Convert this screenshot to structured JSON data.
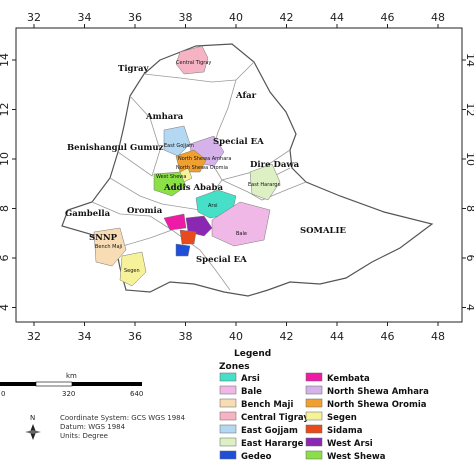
{
  "map": {
    "x_ticks": [
      "32",
      "34",
      "36",
      "38",
      "40",
      "42",
      "44",
      "46",
      "48"
    ],
    "y_ticks": [
      "14",
      "12",
      "10",
      "8",
      "6",
      "4"
    ],
    "regions": [
      "Tigray",
      "Afar",
      "Amhara",
      "Benishangul Gumuz",
      "Special EA",
      "Dire Dawa",
      "Addis Ababa",
      "Gambella",
      "Oromia",
      "SNNP",
      "Special EA",
      "SOMALIE"
    ],
    "zone_labels": [
      "Central Tigray",
      "East Gojjam",
      "North Shewa Amhara",
      "North Shewa Oromia",
      "West Shewa",
      "East Hararge",
      "Arsi",
      "Bale",
      "Bench Maji",
      "Segen"
    ]
  },
  "legend": {
    "title": "Legend",
    "subtitle": "Zones",
    "items": [
      {
        "label": "Arsi",
        "color": "#46e0c8"
      },
      {
        "label": "Kembata",
        "color": "#ee1ba6"
      },
      {
        "label": "Bale",
        "color": "#f0b8e6"
      },
      {
        "label": "North Shewa Amhara",
        "color": "#d5b3ea"
      },
      {
        "label": "Bench Maji",
        "color": "#f8dcb4"
      },
      {
        "label": "North Shewa Oromia",
        "color": "#f0a030"
      },
      {
        "label": "Central Tigray",
        "color": "#f5b3c4"
      },
      {
        "label": "Segen",
        "color": "#f6f29a"
      },
      {
        "label": "East Gojjam",
        "color": "#b4d8f2"
      },
      {
        "label": "Sidama",
        "color": "#e84a1c"
      },
      {
        "label": "East Hararge",
        "color": "#dcf0c4"
      },
      {
        "label": "West Arsi",
        "color": "#8a28b4"
      },
      {
        "label": "Gedeo",
        "color": "#1f4fd8"
      },
      {
        "label": "West Shewa",
        "color": "#8ae046"
      }
    ]
  },
  "scale": {
    "unit": "km",
    "labels": [
      "0",
      "320",
      "640"
    ]
  },
  "north": "N",
  "metadata": {
    "coordinate_system": "Coordinate System: GCS WGS 1984",
    "datum": "Datum: WGS 1984",
    "units": "Units: Degree"
  }
}
